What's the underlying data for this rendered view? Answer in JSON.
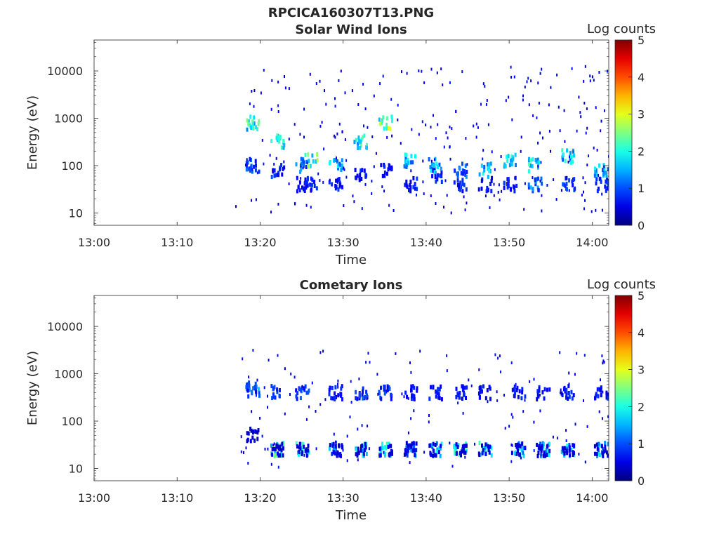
{
  "figure_title": "RPCICA160307T13.PNG",
  "chart_data": [
    {
      "type": "heatmap",
      "title": "Solar Wind Ions",
      "xlabel": "Time",
      "ylabel": "Energy (eV)",
      "y_scale": "log",
      "ylim": [
        5.5,
        45000
      ],
      "xlim": [
        "13:00",
        "14:02"
      ],
      "x_ticks": [
        "13:00",
        "13:10",
        "13:20",
        "13:30",
        "13:40",
        "13:50",
        "14:00"
      ],
      "y_ticks": [
        "10",
        "100",
        "1000",
        "10000"
      ],
      "y_tick_values": [
        10,
        100,
        1000,
        10000
      ],
      "colorbar": {
        "label": "Log counts",
        "range": [
          0,
          5
        ],
        "ticks": [
          "0",
          "1",
          "2",
          "3",
          "4",
          "5"
        ],
        "colormap": "jet"
      },
      "data_start": "13:17",
      "bursts": [
        {
          "time": "13:19",
          "e_low": 2.0,
          "e_high": 2.9,
          "e_ion": 0.0,
          "v_low": 1.1,
          "v_high": 2.2,
          "v_ion": 0.8
        },
        {
          "time": "13:22",
          "e_low": 1.9,
          "e_high": 2.5,
          "e_ion": 0.0,
          "v_low": 0.9,
          "v_high": 2.0,
          "v_ion": 0.6
        },
        {
          "time": "13:25",
          "e_low": 1.6,
          "e_high": 2.0,
          "e_ion": 0.0,
          "v_low": 0.8,
          "v_high": 1.4,
          "v_ion": 0.6
        },
        {
          "time": "13:26",
          "e_low": 1.6,
          "e_high": 2.1,
          "e_ion": 0.0,
          "v_low": 0.8,
          "v_high": 2.4,
          "v_ion": 0.6
        },
        {
          "time": "13:29",
          "e_low": 1.6,
          "e_high": 2.0,
          "e_ion": 0.0,
          "v_low": 0.8,
          "v_high": 1.8,
          "v_ion": 0.6
        },
        {
          "time": "13:32",
          "e_low": 1.8,
          "e_high": 2.5,
          "e_ion": 0.0,
          "v_low": 0.8,
          "v_high": 2.2,
          "v_ion": 0.6
        },
        {
          "time": "13:35",
          "e_low": 1.9,
          "e_high": 2.9,
          "e_ion": 0.0,
          "v_low": 0.8,
          "v_high": 2.6,
          "v_ion": 0.6
        },
        {
          "time": "13:38",
          "e_low": 1.6,
          "e_high": 2.1,
          "e_ion": 0.0,
          "v_low": 0.8,
          "v_high": 1.8,
          "v_ion": 0.6
        },
        {
          "time": "13:41",
          "e_low": 1.8,
          "e_high": 2.0,
          "e_ion": 0.0,
          "v_low": 0.8,
          "v_high": 1.8,
          "v_ion": 0.6
        },
        {
          "time": "13:44",
          "e_low": 1.6,
          "e_high": 1.9,
          "e_ion": 0.0,
          "v_low": 0.8,
          "v_high": 1.3,
          "v_ion": 0.6
        },
        {
          "time": "13:47",
          "e_low": 1.6,
          "e_high": 1.9,
          "e_ion": 0.0,
          "v_low": 0.8,
          "v_high": 1.8,
          "v_ion": 0.6
        },
        {
          "time": "13:50",
          "e_low": 1.6,
          "e_high": 2.1,
          "e_ion": 0.0,
          "v_low": 0.8,
          "v_high": 1.8,
          "v_ion": 0.6
        },
        {
          "time": "13:53",
          "e_low": 1.6,
          "e_high": 2.0,
          "e_ion": 0.0,
          "v_low": 1.4,
          "v_high": 2.0,
          "v_ion": 0.6
        },
        {
          "time": "13:57",
          "e_low": 1.6,
          "e_high": 2.2,
          "e_ion": 0.0,
          "v_low": 1.0,
          "v_high": 2.0,
          "v_ion": 0.6
        },
        {
          "time": "14:01",
          "e_low": 1.6,
          "e_high": 1.9,
          "e_ion": 0.0,
          "v_low": 0.9,
          "v_high": 1.6,
          "v_ion": 0.6
        }
      ],
      "scatter_seed": 11,
      "scatter_count": 260,
      "scatter_energy": [
        1.0,
        4.1
      ]
    },
    {
      "type": "heatmap",
      "title": "Cometary Ions",
      "xlabel": "Time",
      "ylabel": "Energy (eV)",
      "y_scale": "log",
      "ylim": [
        5.5,
        45000
      ],
      "xlim": [
        "13:00",
        "14:02"
      ],
      "x_ticks": [
        "13:00",
        "13:10",
        "13:20",
        "13:30",
        "13:40",
        "13:50",
        "14:00"
      ],
      "y_ticks": [
        "10",
        "100",
        "1000",
        "10000"
      ],
      "y_tick_values": [
        10,
        100,
        1000,
        10000
      ],
      "colorbar": {
        "label": "Log counts",
        "range": [
          0,
          5
        ],
        "ticks": [
          "0",
          "1",
          "2",
          "3",
          "4",
          "5"
        ],
        "colormap": "jet"
      },
      "data_start": "13:17",
      "bursts": [
        {
          "time": "13:19",
          "e_low": 2.7,
          "e_high": 2.6,
          "e_ion": 1.7,
          "v_low": 1.4,
          "v_high": 1.1,
          "v_ion": 0.5
        },
        {
          "time": "13:22",
          "e_low": 1.4,
          "e_high": 2.6,
          "e_ion": 1.4,
          "v_low": 2.4,
          "v_high": 1.0,
          "v_ion": 0.5
        },
        {
          "time": "13:25",
          "e_low": 1.4,
          "e_high": 2.6,
          "e_ion": 1.4,
          "v_low": 2.0,
          "v_high": 1.0,
          "v_ion": 0.5
        },
        {
          "time": "13:29",
          "e_low": 1.4,
          "e_high": 2.6,
          "e_ion": 1.4,
          "v_low": 1.4,
          "v_high": 0.8,
          "v_ion": 0.5
        },
        {
          "time": "13:32",
          "e_low": 1.4,
          "e_high": 2.6,
          "e_ion": 1.4,
          "v_low": 2.2,
          "v_high": 1.0,
          "v_ion": 0.5
        },
        {
          "time": "13:35",
          "e_low": 1.4,
          "e_high": 2.6,
          "e_ion": 1.4,
          "v_low": 2.2,
          "v_high": 1.0,
          "v_ion": 0.5
        },
        {
          "time": "13:38",
          "e_low": 1.4,
          "e_high": 2.6,
          "e_ion": 1.4,
          "v_low": 1.4,
          "v_high": 0.8,
          "v_ion": 0.5
        },
        {
          "time": "13:41",
          "e_low": 1.4,
          "e_high": 2.6,
          "e_ion": 1.4,
          "v_low": 1.8,
          "v_high": 0.8,
          "v_ion": 0.5
        },
        {
          "time": "13:44",
          "e_low": 1.4,
          "e_high": 2.6,
          "e_ion": 1.4,
          "v_low": 2.0,
          "v_high": 0.8,
          "v_ion": 0.5
        },
        {
          "time": "13:47",
          "e_low": 1.4,
          "e_high": 2.6,
          "e_ion": 1.4,
          "v_low": 2.0,
          "v_high": 0.8,
          "v_ion": 0.5
        },
        {
          "time": "13:51",
          "e_low": 1.4,
          "e_high": 2.6,
          "e_ion": 1.4,
          "v_low": 1.8,
          "v_high": 0.8,
          "v_ion": 0.5
        },
        {
          "time": "13:54",
          "e_low": 1.4,
          "e_high": 2.6,
          "e_ion": 1.4,
          "v_low": 1.8,
          "v_high": 0.8,
          "v_ion": 0.5
        },
        {
          "time": "13:57",
          "e_low": 1.4,
          "e_high": 2.6,
          "e_ion": 1.4,
          "v_low": 1.8,
          "v_high": 0.8,
          "v_ion": 0.5
        },
        {
          "time": "14:01",
          "e_low": 1.4,
          "e_high": 2.6,
          "e_ion": 1.4,
          "v_low": 1.8,
          "v_high": 0.8,
          "v_ion": 0.5
        }
      ],
      "scatter_seed": 23,
      "scatter_count": 150,
      "scatter_energy": [
        1.0,
        3.5
      ]
    }
  ]
}
